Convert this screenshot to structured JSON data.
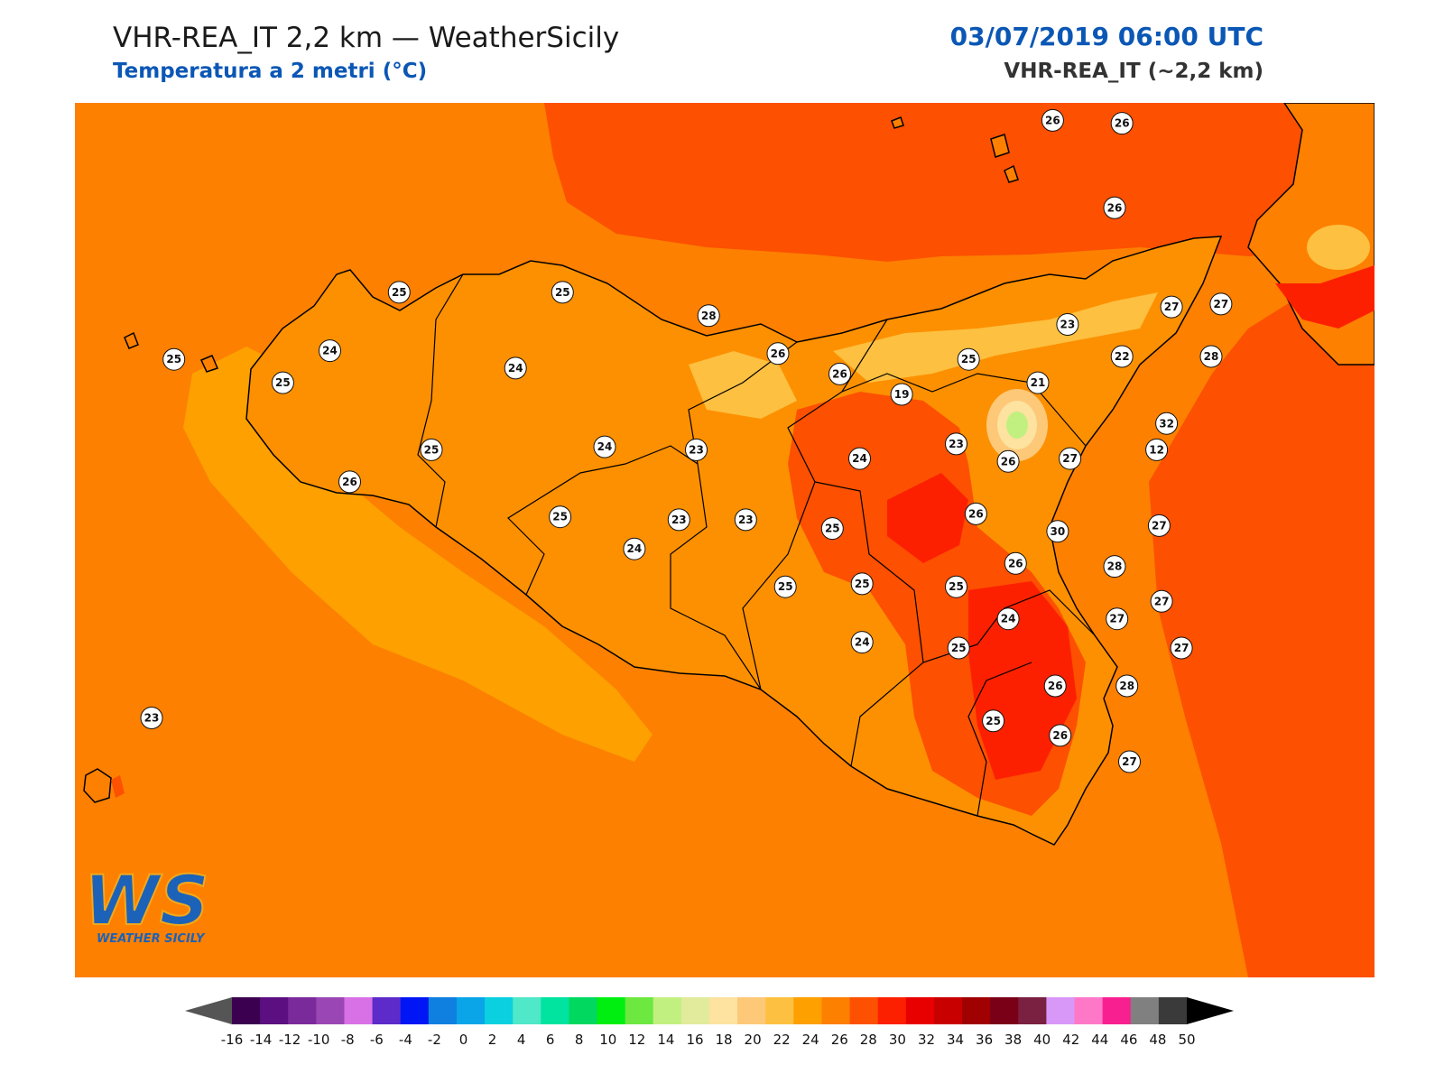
{
  "header": {
    "title": "VHR-REA_IT 2,2 km — WeatherSicily",
    "subtitle": "Temperatura a 2 metri (°C)",
    "datetime": "03/07/2019 06:00 UTC",
    "model": "VHR-REA_IT (~2,2 km)"
  },
  "logo": {
    "letters": "WS",
    "caption": "WEATHER SICILY"
  },
  "colorbar": {
    "ticks": [
      "-16",
      "-14",
      "-12",
      "-10",
      "-8",
      "-6",
      "-4",
      "-2",
      "0",
      "2",
      "4",
      "6",
      "8",
      "10",
      "12",
      "14",
      "16",
      "18",
      "20",
      "22",
      "24",
      "26",
      "28",
      "30",
      "32",
      "34",
      "36",
      "38",
      "40",
      "42",
      "44",
      "46",
      "48",
      "50"
    ],
    "colors": [
      "#3b004f",
      "#5b0f80",
      "#7b2a9c",
      "#9a47b5",
      "#d870e6",
      "#5c2bc9",
      "#0016f4",
      "#0f7fe0",
      "#0aa5e8",
      "#0ad0e0",
      "#4fe8c8",
      "#00e4a0",
      "#00d860",
      "#00ef10",
      "#6ce840",
      "#c2f080",
      "#e2ea9c",
      "#fde2a0",
      "#fdc878",
      "#fdc040",
      "#fda000",
      "#fd8000",
      "#fd5000",
      "#fd2000",
      "#e80000",
      "#c80000",
      "#a00000",
      "#7a0018",
      "#7a2040",
      "#d898f8",
      "#ff78c8",
      "#f82090",
      "#808080",
      "#3a3a3a"
    ],
    "under_color": "#555555",
    "over_color": "#000000"
  },
  "stations": [
    {
      "label": "26",
      "lon": 14.95,
      "lat": 38.79
    },
    {
      "label": "26",
      "lon": 15.23,
      "lat": 38.78
    },
    {
      "label": "26",
      "lon": 15.2,
      "lat": 38.49
    },
    {
      "label": "25",
      "lon": 12.31,
      "lat": 38.2
    },
    {
      "label": "25",
      "lon": 12.97,
      "lat": 38.2
    },
    {
      "label": "28",
      "lon": 13.56,
      "lat": 38.12
    },
    {
      "label": "26",
      "lon": 13.84,
      "lat": 37.99
    },
    {
      "label": "26",
      "lon": 14.09,
      "lat": 37.92
    },
    {
      "label": "25",
      "lon": 14.61,
      "lat": 37.97
    },
    {
      "label": "23",
      "lon": 15.01,
      "lat": 38.09
    },
    {
      "label": "27",
      "lon": 15.43,
      "lat": 38.15
    },
    {
      "label": "27",
      "lon": 15.63,
      "lat": 38.16
    },
    {
      "label": "22",
      "lon": 15.23,
      "lat": 37.98
    },
    {
      "label": "28",
      "lon": 15.59,
      "lat": 37.98
    },
    {
      "label": "24",
      "lon": 12.03,
      "lat": 38.0
    },
    {
      "label": "24",
      "lon": 12.78,
      "lat": 37.94
    },
    {
      "label": "25",
      "lon": 11.4,
      "lat": 37.97
    },
    {
      "label": "25",
      "lon": 11.84,
      "lat": 37.89
    },
    {
      "label": "19",
      "lon": 14.34,
      "lat": 37.85
    },
    {
      "label": "21",
      "lon": 14.89,
      "lat": 37.89
    },
    {
      "label": "32",
      "lon": 15.41,
      "lat": 37.75
    },
    {
      "label": "12",
      "lon": 15.37,
      "lat": 37.66
    },
    {
      "label": "23",
      "lon": 14.56,
      "lat": 37.68
    },
    {
      "label": "25",
      "lon": 12.44,
      "lat": 37.66
    },
    {
      "label": "24",
      "lon": 13.14,
      "lat": 37.67
    },
    {
      "label": "23",
      "lon": 13.51,
      "lat": 37.66
    },
    {
      "label": "24",
      "lon": 14.17,
      "lat": 37.63
    },
    {
      "label": "26",
      "lon": 14.77,
      "lat": 37.62
    },
    {
      "label": "27",
      "lon": 15.02,
      "lat": 37.63
    },
    {
      "label": "26",
      "lon": 12.11,
      "lat": 37.55
    },
    {
      "label": "26",
      "lon": 14.64,
      "lat": 37.44
    },
    {
      "label": "25",
      "lon": 12.96,
      "lat": 37.43
    },
    {
      "label": "23",
      "lon": 13.44,
      "lat": 37.42
    },
    {
      "label": "23",
      "lon": 13.71,
      "lat": 37.42
    },
    {
      "label": "25",
      "lon": 14.06,
      "lat": 37.39
    },
    {
      "label": "30",
      "lon": 14.97,
      "lat": 37.38
    },
    {
      "label": "27",
      "lon": 15.38,
      "lat": 37.4
    },
    {
      "label": "24",
      "lon": 13.26,
      "lat": 37.32
    },
    {
      "label": "26",
      "lon": 14.8,
      "lat": 37.27
    },
    {
      "label": "28",
      "lon": 15.2,
      "lat": 37.26
    },
    {
      "label": "25",
      "lon": 13.87,
      "lat": 37.19
    },
    {
      "label": "25",
      "lon": 14.18,
      "lat": 37.2
    },
    {
      "label": "25",
      "lon": 14.56,
      "lat": 37.19
    },
    {
      "label": "27",
      "lon": 15.39,
      "lat": 37.14
    },
    {
      "label": "24",
      "lon": 14.77,
      "lat": 37.08
    },
    {
      "label": "27",
      "lon": 15.21,
      "lat": 37.08
    },
    {
      "label": "24",
      "lon": 14.18,
      "lat": 37.0
    },
    {
      "label": "25",
      "lon": 14.57,
      "lat": 36.98
    },
    {
      "label": "27",
      "lon": 15.47,
      "lat": 36.98
    },
    {
      "label": "26",
      "lon": 14.96,
      "lat": 36.85
    },
    {
      "label": "28",
      "lon": 15.25,
      "lat": 36.85
    },
    {
      "label": "25",
      "lon": 14.71,
      "lat": 36.73
    },
    {
      "label": "23",
      "lon": 11.31,
      "lat": 36.74
    },
    {
      "label": "26",
      "lon": 14.98,
      "lat": 36.68
    },
    {
      "label": "27",
      "lon": 15.26,
      "lat": 36.59
    }
  ]
}
